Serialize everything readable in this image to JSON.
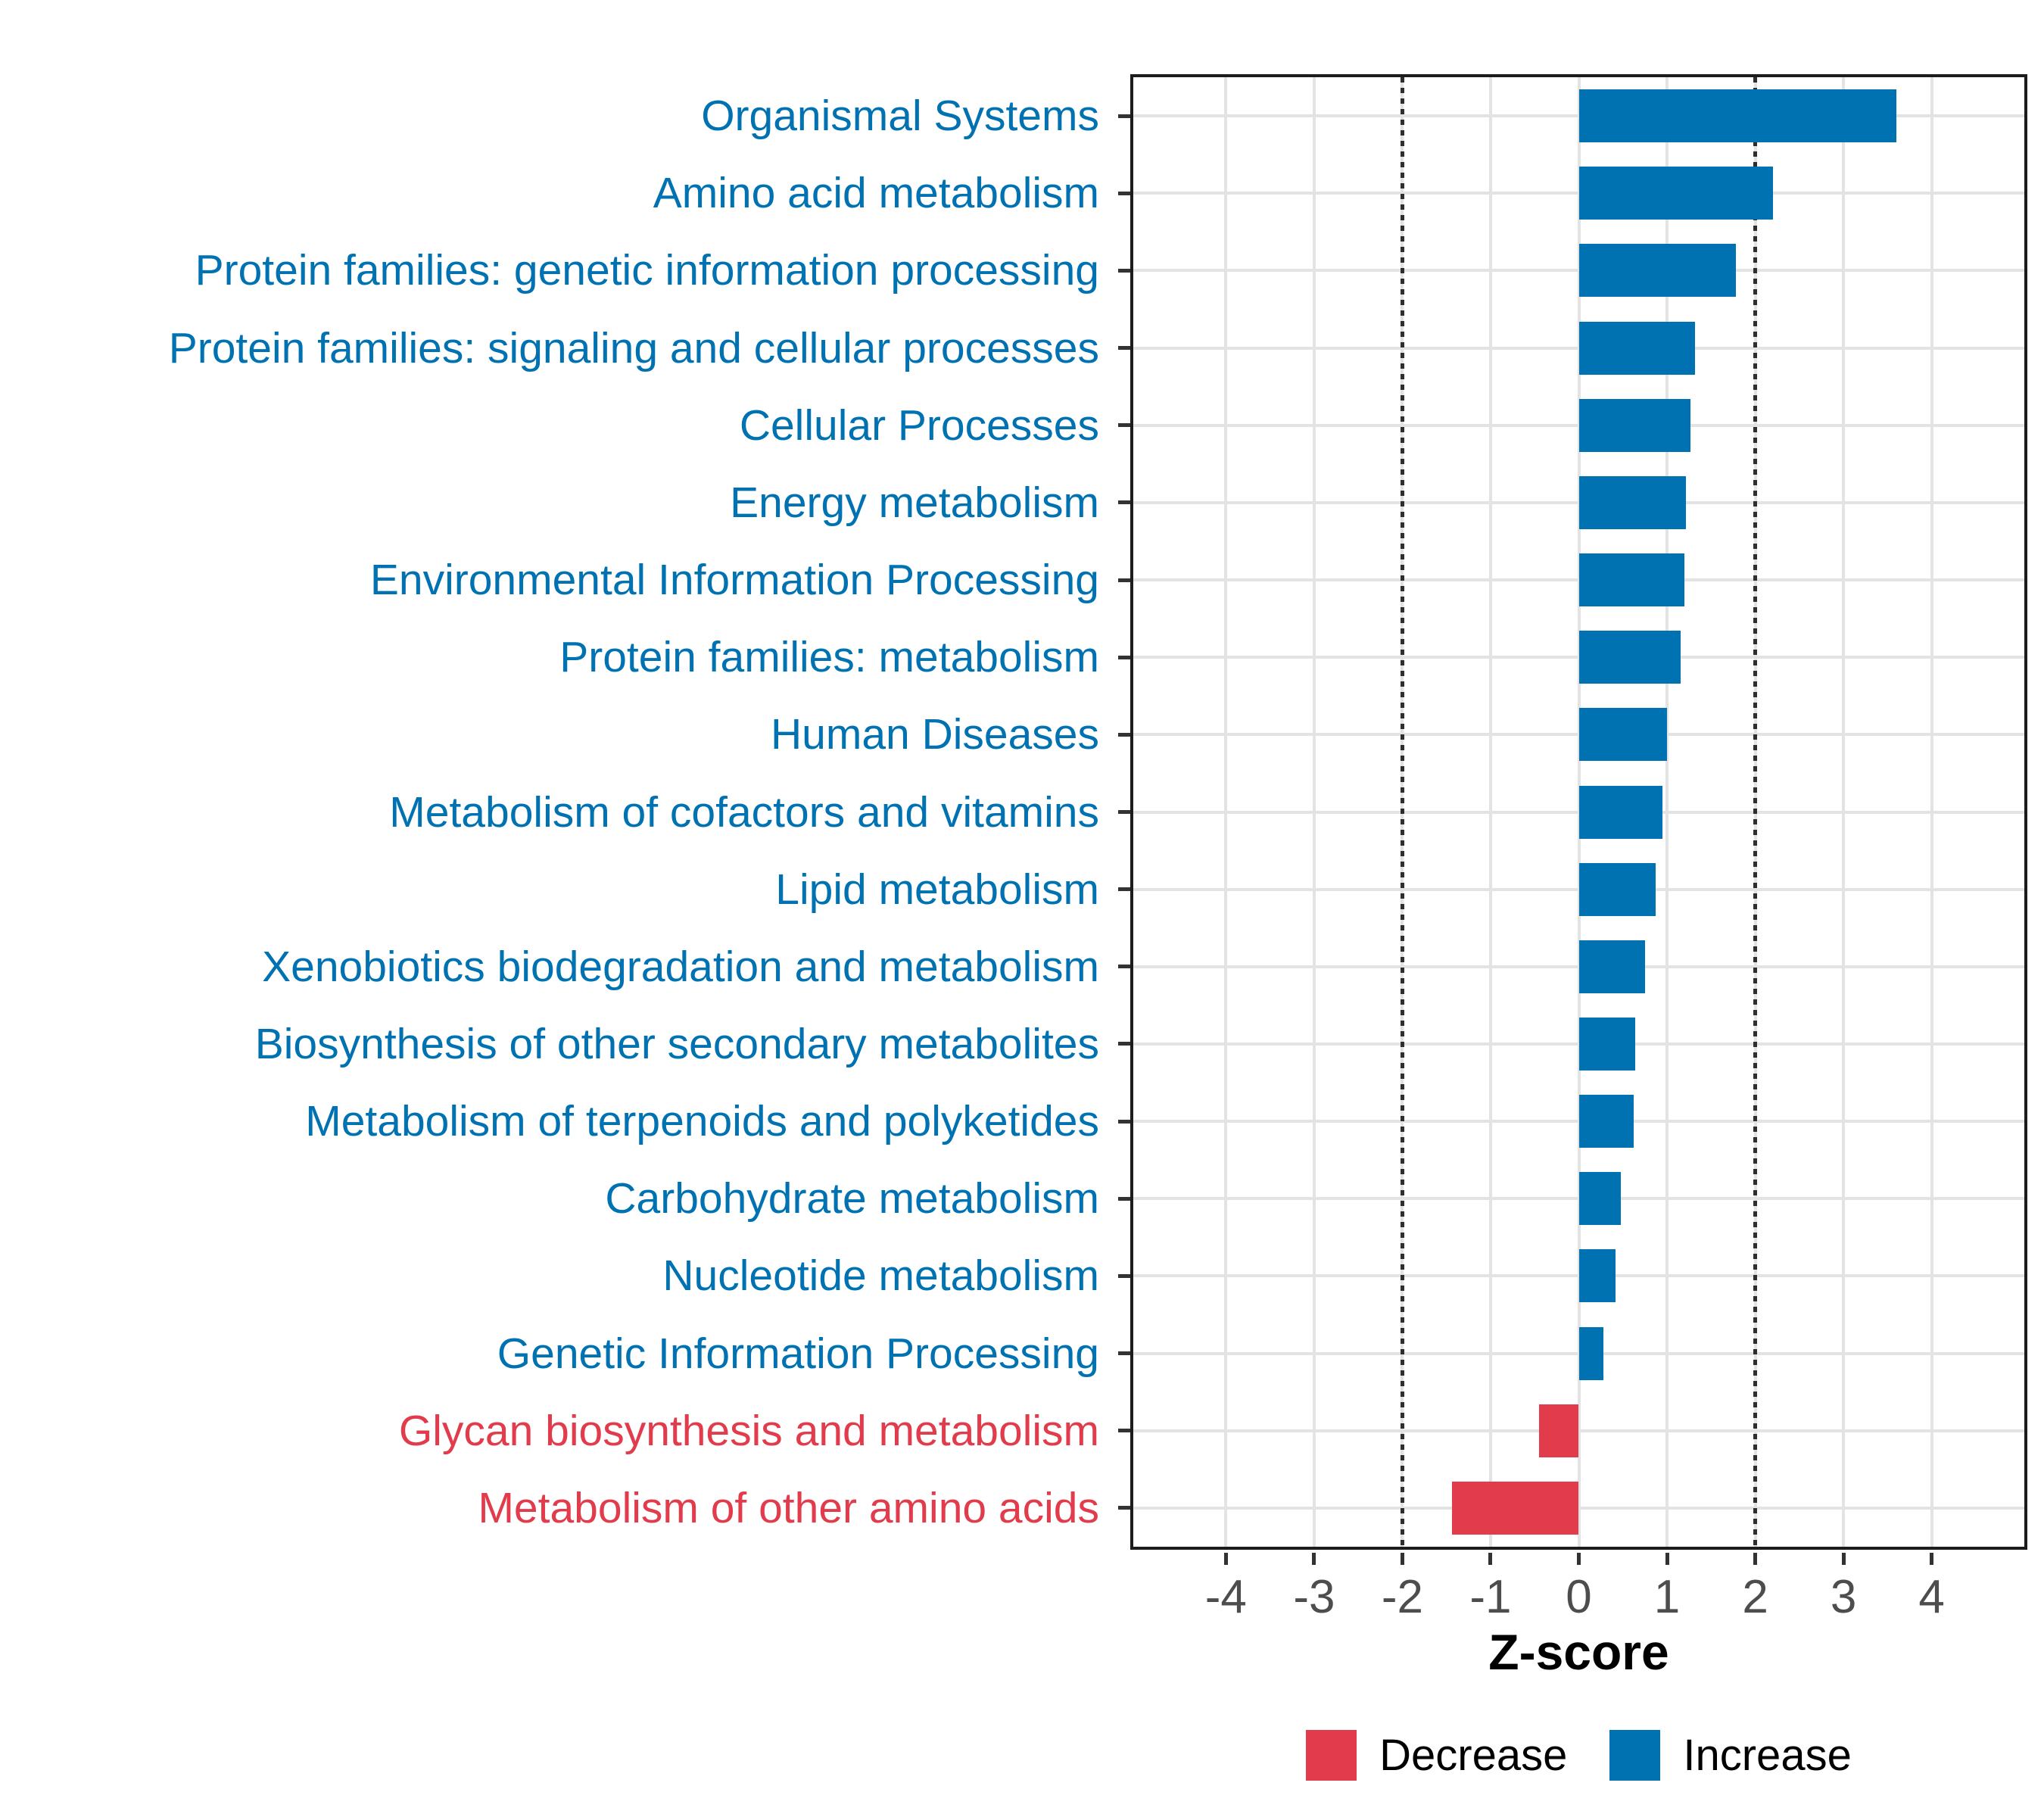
{
  "chart_data": {
    "type": "bar",
    "orientation": "horizontal",
    "title": "",
    "xlabel": "Z-score",
    "ylabel": "",
    "xlim": [
      -5.05,
      5.05
    ],
    "x_ticks": [
      -4,
      -3,
      -2,
      -1,
      0,
      1,
      2,
      3,
      4
    ],
    "grid": "major-only",
    "reference_lines": [
      -2,
      2
    ],
    "legend_position": "bottom",
    "categories": [
      "Organismal Systems",
      "Amino acid metabolism",
      "Protein families: genetic information processing",
      "Protein families: signaling and cellular processes",
      "Cellular Processes",
      "Energy metabolism",
      "Environmental Information Processing",
      "Protein families: metabolism",
      "Human Diseases",
      "Metabolism of cofactors and vitamins",
      "Lipid metabolism",
      "Xenobiotics biodegradation and metabolism",
      "Biosynthesis of other secondary metabolites",
      "Metabolism of terpenoids and polyketides",
      "Carbohydrate metabolism",
      "Nucleotide metabolism",
      "Genetic Information Processing",
      "Glycan biosynthesis and metabolism",
      "Metabolism of other amino acids"
    ],
    "bars": [
      {
        "label": "Organismal Systems",
        "value": 3.6,
        "direction": "increase"
      },
      {
        "label": "Amino acid metabolism",
        "value": 2.2,
        "direction": "increase"
      },
      {
        "label": "Protein families: genetic information processing",
        "value": 1.78,
        "direction": "increase"
      },
      {
        "label": "Protein families: signaling and cellular processes",
        "value": 1.32,
        "direction": "increase"
      },
      {
        "label": "Cellular Processes",
        "value": 1.27,
        "direction": "increase"
      },
      {
        "label": "Energy metabolism",
        "value": 1.21,
        "direction": "increase"
      },
      {
        "label": "Environmental Information Processing",
        "value": 1.2,
        "direction": "increase"
      },
      {
        "label": "Protein families: metabolism",
        "value": 1.15,
        "direction": "increase"
      },
      {
        "label": "Human Diseases",
        "value": 1.0,
        "direction": "increase"
      },
      {
        "label": "Metabolism of cofactors and vitamins",
        "value": 0.95,
        "direction": "increase"
      },
      {
        "label": "Lipid metabolism",
        "value": 0.87,
        "direction": "increase"
      },
      {
        "label": "Xenobiotics biodegradation and metabolism",
        "value": 0.75,
        "direction": "increase"
      },
      {
        "label": "Biosynthesis of other secondary metabolites",
        "value": 0.64,
        "direction": "increase"
      },
      {
        "label": "Metabolism of terpenoids and polyketides",
        "value": 0.62,
        "direction": "increase"
      },
      {
        "label": "Carbohydrate metabolism",
        "value": 0.48,
        "direction": "increase"
      },
      {
        "label": "Nucleotide metabolism",
        "value": 0.42,
        "direction": "increase"
      },
      {
        "label": "Genetic Information Processing",
        "value": 0.28,
        "direction": "increase"
      },
      {
        "label": "Glycan biosynthesis and metabolism",
        "value": -0.45,
        "direction": "decrease"
      },
      {
        "label": "Metabolism of other amino acids",
        "value": -1.44,
        "direction": "decrease"
      }
    ],
    "colors": {
      "increase": "#0072B2",
      "decrease": "#E23B4C",
      "gridline": "#e3e3e3",
      "reference_line": "#2e2e2e",
      "tick_label": "#4d4d4d",
      "panel_border": "#1c1c1c"
    }
  },
  "legend": {
    "decrease_label": "Decrease",
    "increase_label": "Increase"
  }
}
